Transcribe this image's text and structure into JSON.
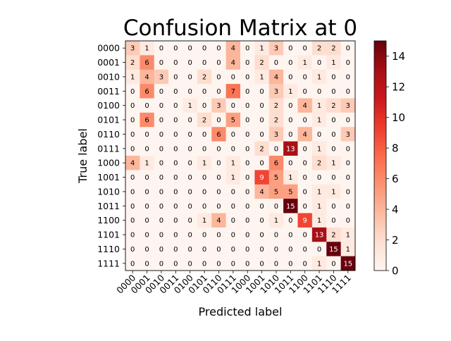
{
  "chart_data": {
    "type": "heatmap",
    "title": "Confusion Matrix at 0",
    "xlabel": "Predicted label",
    "ylabel": "True label",
    "row_labels": [
      "0000",
      "0001",
      "0010",
      "0011",
      "0100",
      "0101",
      "0110",
      "0111",
      "1000",
      "1001",
      "1010",
      "1011",
      "1100",
      "1101",
      "1110",
      "1111"
    ],
    "col_labels": [
      "0000",
      "0001",
      "0010",
      "0011",
      "0100",
      "0101",
      "0110",
      "0111",
      "1000",
      "1001",
      "1010",
      "1011",
      "1100",
      "1101",
      "1110",
      "1111"
    ],
    "matrix": [
      [
        3,
        1,
        0,
        0,
        0,
        0,
        0,
        4,
        0,
        1,
        3,
        0,
        0,
        2,
        2,
        0
      ],
      [
        2,
        6,
        0,
        0,
        0,
        0,
        0,
        4,
        0,
        2,
        0,
        0,
        1,
        0,
        1,
        0
      ],
      [
        1,
        4,
        3,
        0,
        0,
        2,
        0,
        0,
        0,
        1,
        4,
        0,
        0,
        1,
        0,
        0
      ],
      [
        0,
        6,
        0,
        0,
        0,
        0,
        0,
        7,
        0,
        0,
        3,
        1,
        0,
        0,
        0,
        0
      ],
      [
        0,
        0,
        0,
        0,
        1,
        0,
        3,
        0,
        0,
        0,
        2,
        0,
        4,
        1,
        2,
        3
      ],
      [
        0,
        6,
        0,
        0,
        0,
        2,
        0,
        5,
        0,
        0,
        2,
        0,
        0,
        1,
        0,
        0
      ],
      [
        0,
        0,
        0,
        0,
        0,
        0,
        6,
        0,
        0,
        0,
        3,
        0,
        4,
        0,
        0,
        3
      ],
      [
        0,
        0,
        0,
        0,
        0,
        0,
        0,
        0,
        0,
        2,
        0,
        13,
        0,
        1,
        0,
        0
      ],
      [
        4,
        1,
        0,
        0,
        0,
        1,
        0,
        1,
        0,
        0,
        6,
        0,
        0,
        2,
        1,
        0
      ],
      [
        0,
        0,
        0,
        0,
        0,
        0,
        0,
        1,
        0,
        9,
        5,
        1,
        0,
        0,
        0,
        0
      ],
      [
        0,
        0,
        0,
        0,
        0,
        0,
        0,
        0,
        0,
        4,
        5,
        5,
        0,
        1,
        1,
        0
      ],
      [
        0,
        0,
        0,
        0,
        0,
        0,
        0,
        0,
        0,
        0,
        0,
        15,
        0,
        1,
        0,
        0
      ],
      [
        0,
        0,
        0,
        0,
        0,
        1,
        4,
        0,
        0,
        0,
        1,
        0,
        9,
        1,
        0,
        0
      ],
      [
        0,
        0,
        0,
        0,
        0,
        0,
        0,
        0,
        0,
        0,
        0,
        0,
        0,
        13,
        2,
        1
      ],
      [
        0,
        0,
        0,
        0,
        0,
        0,
        0,
        0,
        0,
        0,
        0,
        0,
        0,
        0,
        15,
        1
      ],
      [
        0,
        0,
        0,
        0,
        0,
        0,
        0,
        0,
        0,
        0,
        0,
        0,
        0,
        1,
        0,
        15
      ]
    ],
    "vmin": 0,
    "vmax": 15,
    "colormap": "Reds",
    "colorbar_ticks": [
      0,
      2,
      4,
      6,
      8,
      10,
      12,
      14
    ],
    "grid": false,
    "legend": "colorbar-right"
  }
}
